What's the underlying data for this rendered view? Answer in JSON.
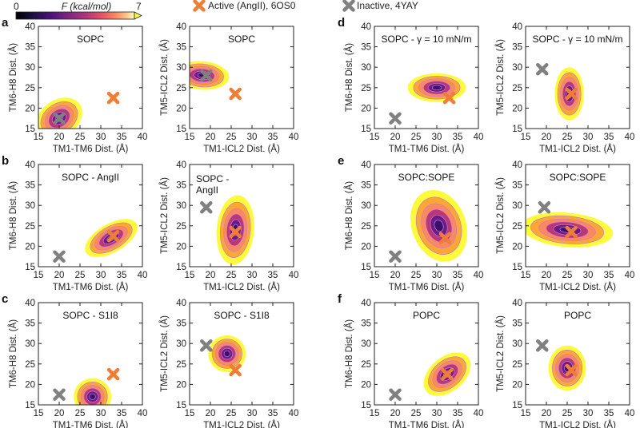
{
  "legend": {
    "colorbar": {
      "label": "F (kcal/mol)",
      "min_label": "0",
      "max_label": "7",
      "min": 0,
      "max": 7
    },
    "active": {
      "label": "Active (AngII), 6OS0",
      "color": "#F07D35"
    },
    "inactive": {
      "label": "Inactive, 4YAY",
      "color": "#808080"
    }
  },
  "colors": {
    "basin": "#3B0F70",
    "mid": "#B73779",
    "high": "#FB8861",
    "edge": "#FCFA3A"
  },
  "chart_data": [
    {
      "id": "a1",
      "panel_label": "a",
      "type": "heatmap",
      "title": "SOPC",
      "xlabel": "TM1-TM6 Dist. (Å)",
      "ylabel": "TM6-H8 Dist. (Å)",
      "xlim": [
        15,
        40
      ],
      "ylim": [
        15,
        40
      ],
      "xticks": [
        15,
        20,
        25,
        30,
        35,
        40
      ],
      "yticks": [
        15,
        20,
        25,
        30,
        35,
        40
      ],
      "minimum": [
        20,
        17.5
      ],
      "spread": [
        6,
        4.5
      ],
      "tilt": 35,
      "active_marker": [
        33,
        22.5
      ],
      "inactive_marker": [
        20,
        17.5
      ]
    },
    {
      "id": "a2",
      "type": "heatmap",
      "title": "SOPC",
      "xlabel": "TM1-ICL2 Dist. (Å)",
      "ylabel": "TM5-ICL2 Dist. (Å)",
      "xlim": [
        15,
        40
      ],
      "ylim": [
        15,
        40
      ],
      "xticks": [
        15,
        20,
        25,
        30,
        35,
        40
      ],
      "yticks": [
        15,
        20,
        25,
        30,
        35,
        40
      ],
      "minimum": [
        18,
        28
      ],
      "spread": [
        6.5,
        3.5
      ],
      "tilt": -5,
      "active_marker": [
        26,
        23.5
      ],
      "inactive_marker": [
        19,
        28
      ]
    },
    {
      "id": "b1",
      "panel_label": "b",
      "type": "heatmap",
      "title": "SOPC - AngII",
      "xlabel": "TM1-TM6 Dist. (Å)",
      "ylabel": "TM6-H8 Dist. (Å)",
      "xlim": [
        15,
        40
      ],
      "ylim": [
        15,
        40
      ],
      "xticks": [
        15,
        20,
        25,
        30,
        35,
        40
      ],
      "yticks": [
        15,
        20,
        25,
        30,
        35,
        40
      ],
      "minimum": [
        32.5,
        22
      ],
      "spread": [
        7,
        3.5
      ],
      "tilt": 30,
      "active_marker": [
        33,
        22.5
      ],
      "inactive_marker": [
        20,
        17.5
      ]
    },
    {
      "id": "b2",
      "type": "heatmap",
      "title_lines": [
        "SOPC -",
        "AngII"
      ],
      "xlabel": "TM1-ICL2 Dist. (Å)",
      "ylabel": "TM5-ICL2 Dist. (Å)",
      "xlim": [
        15,
        40
      ],
      "ylim": [
        15,
        40
      ],
      "xticks": [
        15,
        20,
        25,
        30,
        35,
        40
      ],
      "yticks": [
        15,
        20,
        25,
        30,
        35,
        40
      ],
      "minimum": [
        26,
        24
      ],
      "spread": [
        4.5,
        8.5
      ],
      "tilt": -5,
      "active_marker": [
        26,
        23.5
      ],
      "inactive_marker": [
        19,
        29.5
      ]
    },
    {
      "id": "c1",
      "panel_label": "c",
      "type": "heatmap",
      "title": "SOPC - S1I8",
      "xlabel": "TM1-TM6 Dist. (Å)",
      "ylabel": "TM6-H8 Dist. (Å)",
      "xlim": [
        15,
        40
      ],
      "ylim": [
        15,
        40
      ],
      "xticks": [
        15,
        20,
        25,
        30,
        35,
        40
      ],
      "yticks": [
        15,
        20,
        25,
        30,
        35,
        40
      ],
      "minimum": [
        28,
        17
      ],
      "spread": [
        4.5,
        4.5
      ],
      "tilt": 0,
      "active_marker": [
        33,
        22.5
      ],
      "inactive_marker": [
        20,
        17.5
      ]
    },
    {
      "id": "c2",
      "type": "heatmap",
      "title": "SOPC - S1I8",
      "xlabel": "TM1-ICL2 Dist. (Å)",
      "ylabel": "TM5-ICL2 Dist. (Å)",
      "xlim": [
        15,
        40
      ],
      "ylim": [
        15,
        40
      ],
      "xticks": [
        15,
        20,
        25,
        30,
        35,
        40
      ],
      "yticks": [
        15,
        20,
        25,
        30,
        35,
        40
      ],
      "minimum": [
        24,
        27.5
      ],
      "spread": [
        4.5,
        4.5
      ],
      "tilt": 0,
      "active_marker": [
        26,
        23.5
      ],
      "inactive_marker": [
        19,
        29.5
      ]
    },
    {
      "id": "d1",
      "panel_label": "d",
      "type": "heatmap",
      "title": "SOPC - γ = 10 mN/m",
      "xlabel": "TM1-TM6 Dist. (Å)",
      "ylabel": "TM6-H8 Dist. (Å)",
      "xlim": [
        15,
        40
      ],
      "ylim": [
        15,
        40
      ],
      "xticks": [
        15,
        20,
        25,
        30,
        35,
        40
      ],
      "yticks": [
        15,
        20,
        25,
        30,
        35,
        40
      ],
      "minimum": [
        30,
        25
      ],
      "spread": [
        7,
        3.5
      ],
      "tilt": 0,
      "active_marker": [
        33,
        22.5
      ],
      "inactive_marker": [
        20,
        17.5
      ]
    },
    {
      "id": "d2",
      "type": "heatmap",
      "title": "SOPC - γ = 10 mN/m",
      "xlabel": "TM1-ICL2 Dist. (Å)",
      "ylabel": "TM5-ICL2 Dist. (Å)",
      "xlim": [
        15,
        40
      ],
      "ylim": [
        15,
        40
      ],
      "xticks": [
        15,
        20,
        25,
        30,
        35,
        40
      ],
      "yticks": [
        15,
        20,
        25,
        30,
        35,
        40
      ],
      "minimum": [
        25.5,
        23.5
      ],
      "spread": [
        3.5,
        6.5
      ],
      "tilt": 0,
      "active_marker": [
        26,
        23.5
      ],
      "inactive_marker": [
        19,
        29.5
      ]
    },
    {
      "id": "e1",
      "panel_label": "e",
      "type": "heatmap",
      "title": "SOPC:SOPE",
      "xlabel": "TM1-TM6 Dist. (Å)",
      "ylabel": "TM6-H8 Dist. (Å)",
      "xlim": [
        15,
        40
      ],
      "ylim": [
        15,
        40
      ],
      "xticks": [
        15,
        20,
        25,
        30,
        35,
        40
      ],
      "yticks": [
        15,
        20,
        25,
        30,
        35,
        40
      ],
      "minimum": [
        30.5,
        25
      ],
      "spread": [
        6.5,
        9
      ],
      "tilt": 20,
      "active_marker": [
        32,
        22
      ],
      "inactive_marker": [
        20,
        17.5
      ]
    },
    {
      "id": "e2",
      "type": "heatmap",
      "title": "SOPC:SOPE",
      "xlabel": "TM1-ICL2 Dist. (Å)",
      "ylabel": "TM5-ICL2 Dist. (Å)",
      "xlim": [
        15,
        40
      ],
      "ylim": [
        15,
        40
      ],
      "xticks": [
        15,
        20,
        25,
        30,
        35,
        40
      ],
      "yticks": [
        15,
        20,
        25,
        30,
        35,
        40
      ],
      "minimum": [
        25,
        24
      ],
      "spread": [
        11,
        4.2
      ],
      "tilt": -5,
      "active_marker": [
        26,
        23.5
      ],
      "inactive_marker": [
        19.5,
        29.5
      ]
    },
    {
      "id": "f1",
      "panel_label": "f",
      "type": "heatmap",
      "title": "POPC",
      "xlabel": "TM1-TM6 Dist. (Å)",
      "ylabel": "TM6-H8 Dist. (Å)",
      "xlim": [
        15,
        40
      ],
      "ylim": [
        15,
        40
      ],
      "xticks": [
        15,
        20,
        25,
        30,
        35,
        40
      ],
      "yticks": [
        15,
        20,
        25,
        30,
        35,
        40
      ],
      "minimum": [
        32.5,
        22.5
      ],
      "spread": [
        6.5,
        4.2
      ],
      "tilt": 40,
      "active_marker": [
        32.5,
        22.5
      ],
      "inactive_marker": [
        20,
        17.5
      ]
    },
    {
      "id": "f2",
      "type": "heatmap",
      "title": "POPC",
      "xlabel": "TM1-ICL2 Dist. (Å)",
      "ylabel": "TM5-ICL2 Dist. (Å)",
      "xlim": [
        15,
        40
      ],
      "ylim": [
        15,
        40
      ],
      "xticks": [
        15,
        20,
        25,
        30,
        35,
        40
      ],
      "yticks": [
        15,
        20,
        25,
        30,
        35,
        40
      ],
      "minimum": [
        25,
        24
      ],
      "spread": [
        4.5,
        5.5
      ],
      "tilt": 0,
      "active_marker": [
        26,
        23.5
      ],
      "inactive_marker": [
        19,
        29.5
      ]
    }
  ]
}
